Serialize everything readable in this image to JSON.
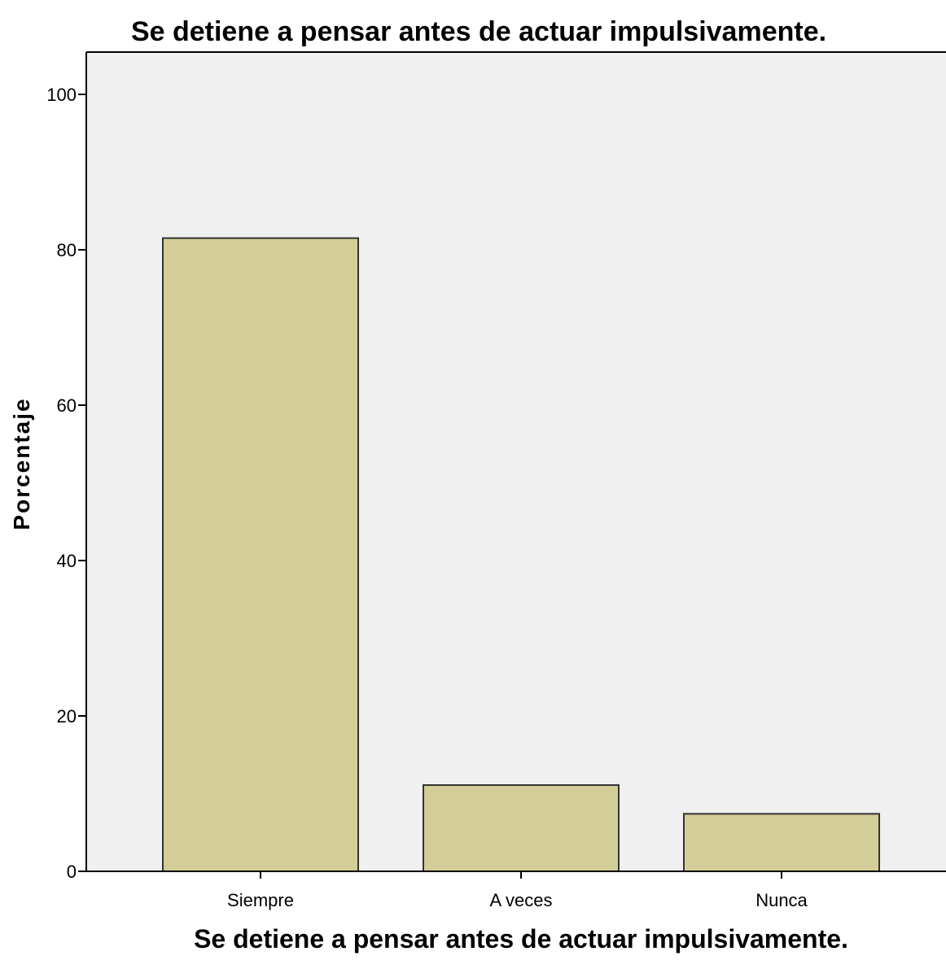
{
  "chart_data": {
    "type": "bar",
    "title": "Se detiene a pensar antes de actuar impulsivamente.",
    "xlabel": "Se detiene a pensar antes de actuar impulsivamente.",
    "ylabel": "Porcentaje",
    "categories": [
      "Siempre",
      "A veces",
      "Nunca"
    ],
    "values": [
      81.5,
      11.1,
      7.4
    ],
    "ylim": [
      0,
      100
    ],
    "yticks": [
      0,
      20,
      40,
      60,
      80,
      100
    ],
    "grid": false,
    "legend": "none",
    "colors": {
      "bar_fill": "#d3cd97",
      "bar_stroke": "#333333",
      "plot_background": "#f0f0f0",
      "axis": "#000000"
    }
  }
}
